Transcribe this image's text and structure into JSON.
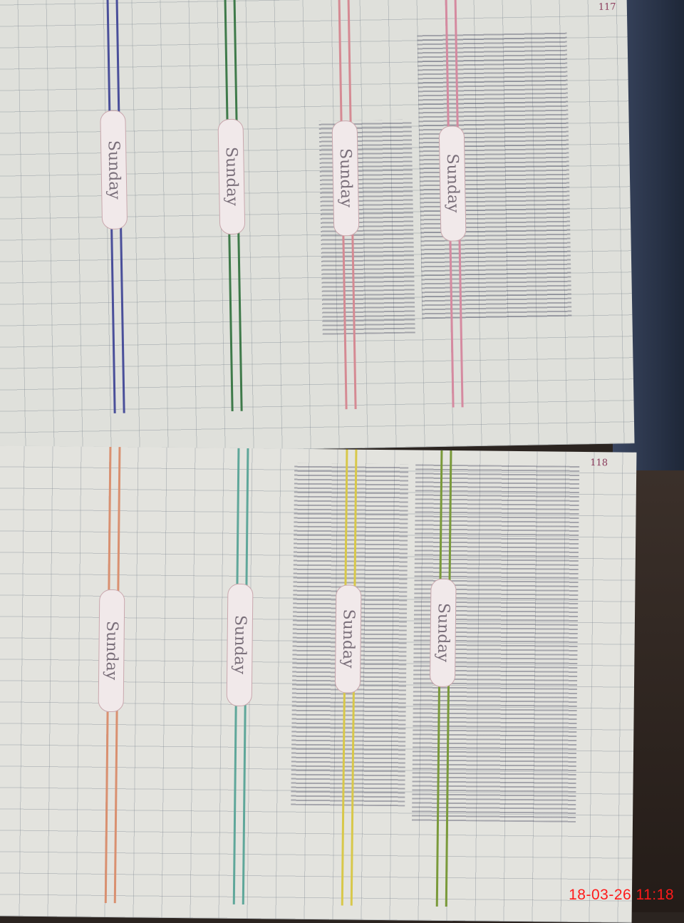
{
  "photo": {
    "timestamp": "18-03-26  11:18",
    "timestamp_color": "#ff1a1a"
  },
  "left_page": {
    "page_number": "117",
    "day_labels": [
      "Sunday",
      "Sunday",
      "Sunday",
      "Sunday"
    ],
    "line_colors": [
      "#4a4f9a",
      "#3f7a4a",
      "#d58a93",
      "#d58aa0"
    ]
  },
  "right_page": {
    "page_number": "118",
    "day_labels": [
      "Sunday",
      "Sunday",
      "Sunday",
      "Sunday"
    ],
    "line_colors": [
      "#d99070",
      "#5fa79a",
      "#d8c84a",
      "#7a9a3a"
    ]
  }
}
